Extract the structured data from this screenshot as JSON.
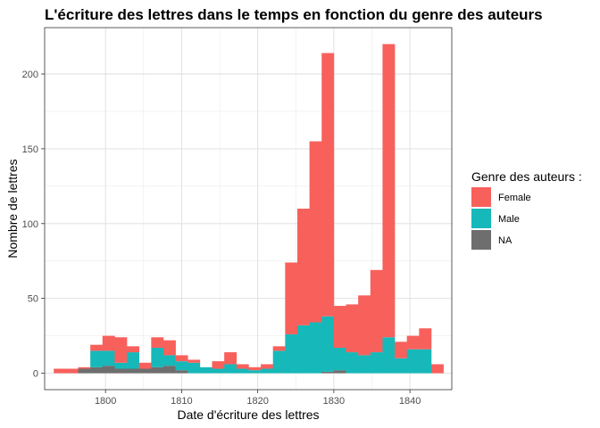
{
  "chart_data": {
    "type": "bar",
    "stacked": true,
    "title": "L'écriture des lettres dans le temps en fonction du genre des auteurs",
    "xlabel": "Date d'écriture des lettres",
    "ylabel": "Nombre de lettres",
    "xlim": [
      1792,
      1845.5
    ],
    "ylim": [
      -11,
      231
    ],
    "xticks": [
      1800,
      1810,
      1820,
      1830,
      1840
    ],
    "yticks": [
      0,
      50,
      100,
      150,
      200
    ],
    "xtick_labels": [
      "1800",
      "1810",
      "1820",
      "1830",
      "1840"
    ],
    "ytick_labels": [
      "0",
      "50",
      "100",
      "150",
      "200"
    ],
    "bin_width": 1.6,
    "bin_start": [
      1793.2,
      1794.8,
      1796.4,
      1798.0,
      1799.6,
      1801.2,
      1802.8,
      1804.4,
      1806.0,
      1807.6,
      1809.2,
      1810.8,
      1812.4,
      1814.0,
      1815.6,
      1817.2,
      1818.8,
      1820.4,
      1822.0,
      1823.6,
      1825.2,
      1826.8,
      1828.4,
      1830.0,
      1831.6,
      1833.2,
      1834.8,
      1836.4,
      1838.0,
      1839.6,
      1841.2,
      1842.8
    ],
    "grid": true,
    "legend_position": "right",
    "legend_title": "Genre des auteurs :",
    "series": [
      {
        "name": "NA",
        "color": "#6e6e6e",
        "values": [
          0,
          0,
          3,
          4,
          5,
          3,
          3,
          3,
          4,
          5,
          2,
          0,
          0,
          0,
          0,
          0,
          0,
          0,
          0,
          0,
          0,
          0,
          1,
          2,
          0,
          0,
          0,
          0,
          0,
          0,
          0,
          0
        ]
      },
      {
        "name": "Male",
        "color": "#17b8b9",
        "values": [
          0,
          0,
          0,
          11,
          10,
          4,
          11,
          0,
          13,
          7,
          6,
          7,
          4,
          3,
          6,
          3,
          2,
          3,
          15,
          26,
          32,
          34,
          37,
          15,
          14,
          12,
          14,
          24,
          10,
          16,
          16,
          0
        ]
      },
      {
        "name": "Female",
        "color": "#f8605c",
        "values": [
          3,
          3,
          1,
          4,
          10,
          17,
          4,
          4,
          7,
          10,
          4,
          2,
          0,
          5,
          8,
          3,
          2,
          3,
          3,
          48,
          78,
          121,
          176,
          28,
          32,
          40,
          55,
          196,
          11,
          9,
          14,
          6
        ]
      }
    ]
  }
}
